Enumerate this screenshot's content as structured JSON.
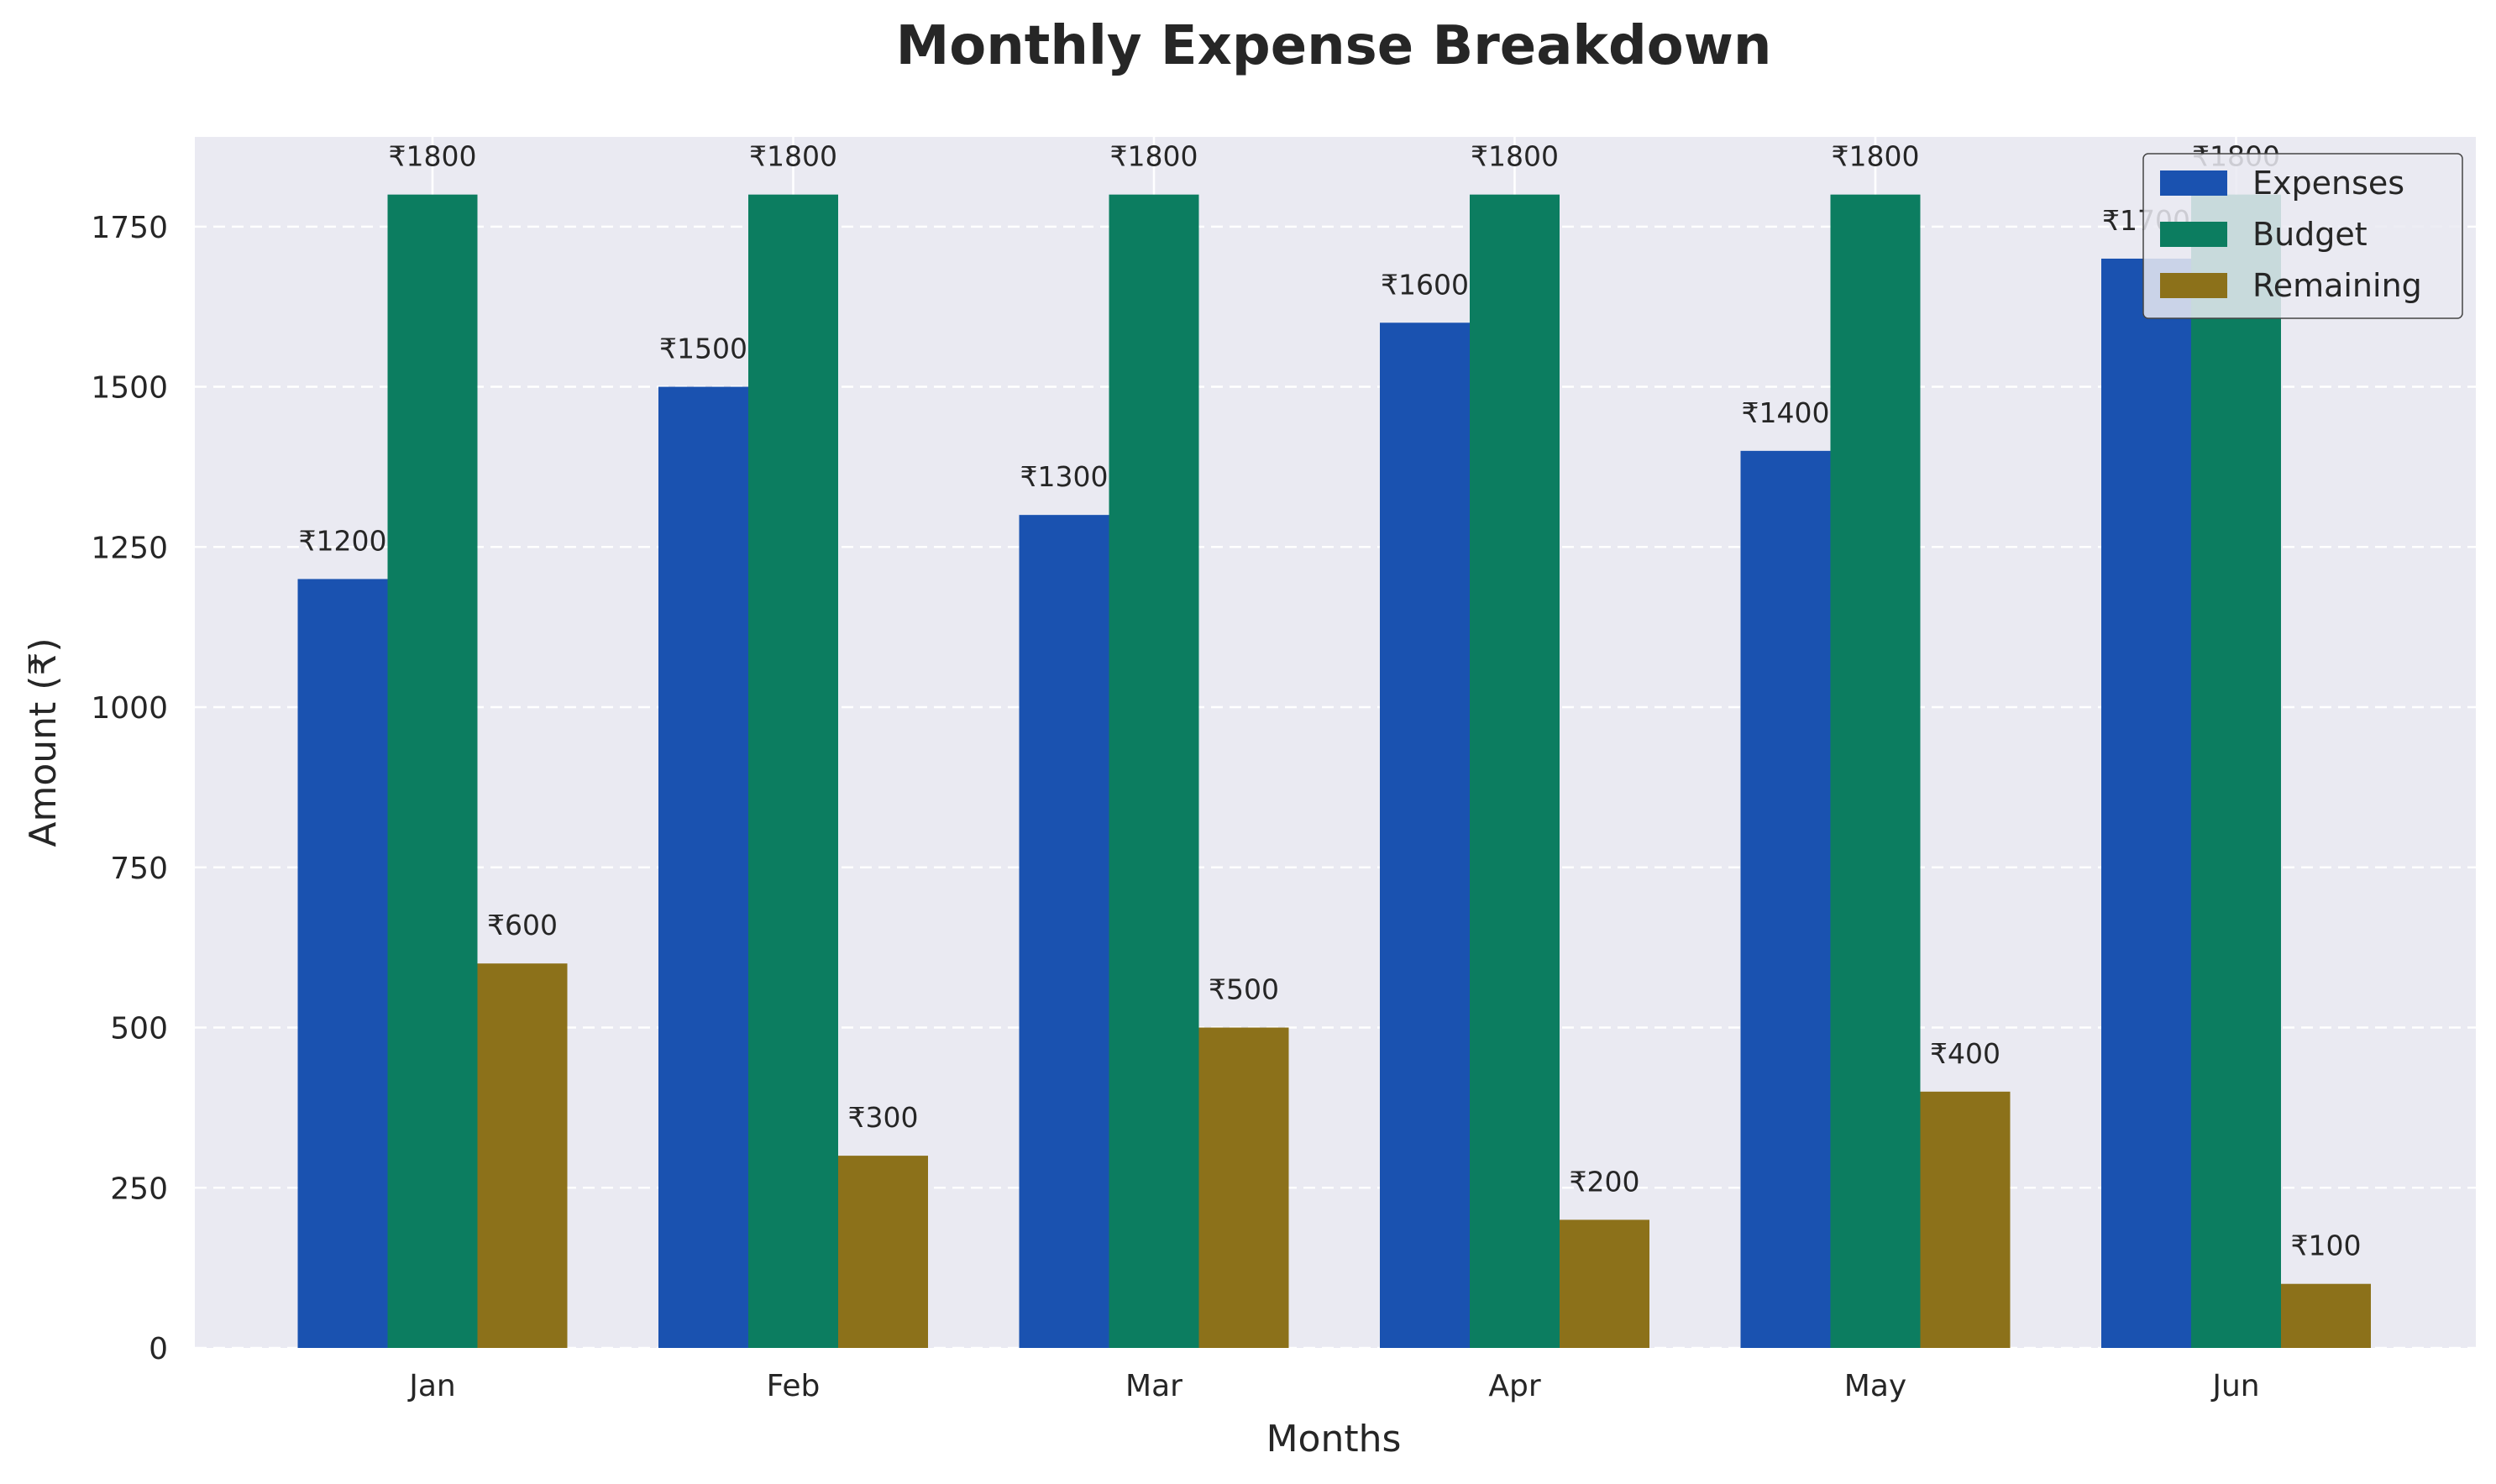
{
  "chart_data": {
    "type": "bar",
    "title": "Monthly Expense Breakdown",
    "xlabel": "Months",
    "ylabel": "Amount (₹)",
    "categories": [
      "Jan",
      "Feb",
      "Mar",
      "Apr",
      "May",
      "Jun"
    ],
    "series": [
      {
        "name": "Expenses",
        "color": "#1a52b0",
        "values": [
          1200,
          1500,
          1300,
          1600,
          1400,
          1700
        ],
        "labels": [
          "₹1200",
          "₹1500",
          "₹1300",
          "₹1600",
          "₹1400",
          "₹1700"
        ]
      },
      {
        "name": "Budget",
        "color": "#0c7d60",
        "values": [
          1800,
          1800,
          1800,
          1800,
          1800,
          1800
        ],
        "labels": [
          "₹1800",
          "₹1800",
          "₹1800",
          "₹1800",
          "₹1800",
          "₹1800"
        ]
      },
      {
        "name": "Remaining",
        "color": "#8c711a",
        "values": [
          600,
          300,
          500,
          200,
          400,
          100
        ],
        "labels": [
          "₹600",
          "₹300",
          "₹500",
          "₹200",
          "₹400",
          "₹100"
        ]
      }
    ],
    "ylim": [
      0,
      1890
    ],
    "yticks": [
      0,
      250,
      500,
      750,
      1000,
      1250,
      1500,
      1750
    ],
    "ytick_labels": [
      "0",
      "250",
      "500",
      "750",
      "1000",
      "1250",
      "1500",
      "1750"
    ],
    "grid": true,
    "legend_position": "top-right",
    "background_color": "#eaeaf2"
  }
}
